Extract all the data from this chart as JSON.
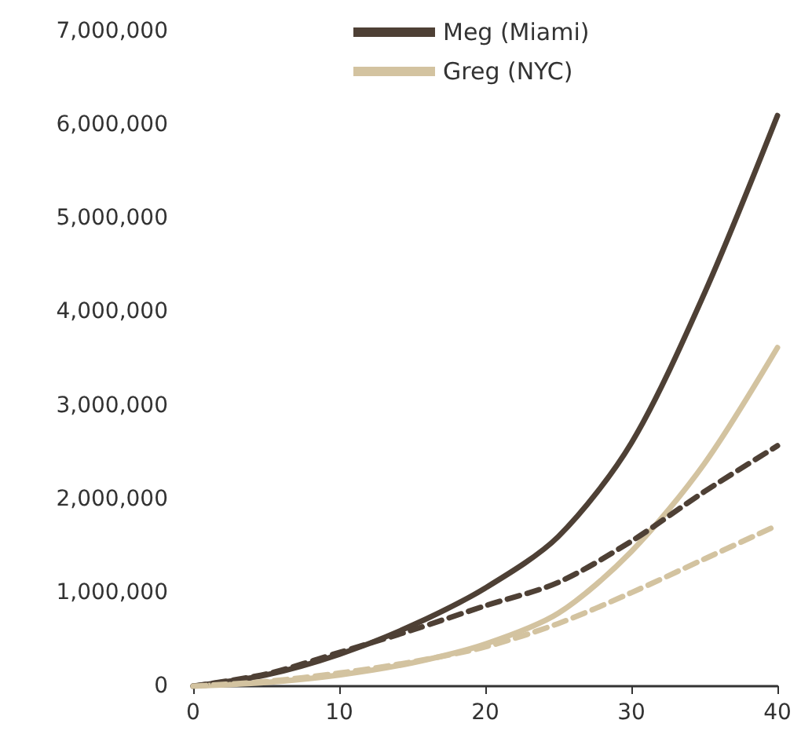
{
  "chart_data": {
    "type": "line",
    "x": [
      0,
      5,
      10,
      15,
      20,
      25,
      30,
      35,
      40
    ],
    "series": [
      {
        "name": "Meg (Miami)",
        "color": "#4e4035",
        "line_style": "solid",
        "values": [
          0,
          120000,
          340000,
          650000,
          1050000,
          1600000,
          2600000,
          4200000,
          6100000
        ]
      },
      {
        "name": "Greg (NYC)",
        "color": "#d3c3a0",
        "line_style": "solid",
        "values": [
          0,
          40000,
          120000,
          250000,
          450000,
          780000,
          1440000,
          2380000,
          3620000
        ]
      },
      {
        "color": "#4e4035",
        "line_style": "dashed",
        "values": [
          0,
          130000,
          360000,
          600000,
          860000,
          1110000,
          1550000,
          2080000,
          2570000
        ]
      },
      {
        "color": "#d3c3a0",
        "line_style": "dashed",
        "values": [
          0,
          50000,
          140000,
          260000,
          420000,
          670000,
          1000000,
          1360000,
          1720000
        ]
      }
    ],
    "xlim": [
      0,
      40
    ],
    "xticks": [
      0,
      10,
      20,
      30,
      40
    ],
    "ylim": [
      0,
      7000000
    ],
    "yticks": [
      {
        "value": 0,
        "label": "0"
      },
      {
        "value": 1000000,
        "label": "1,000,000"
      },
      {
        "value": 2000000,
        "label": "2,000,000"
      },
      {
        "value": 3000000,
        "label": "3,000,000"
      },
      {
        "value": 4000000,
        "label": "4,000,000"
      },
      {
        "value": 5000000,
        "label": "5,000,000"
      },
      {
        "value": 6000000,
        "label": "6,000,000"
      },
      {
        "value": 7000000,
        "label": "7,000,000"
      }
    ],
    "grid": false,
    "legend": "top",
    "marker": "none"
  }
}
